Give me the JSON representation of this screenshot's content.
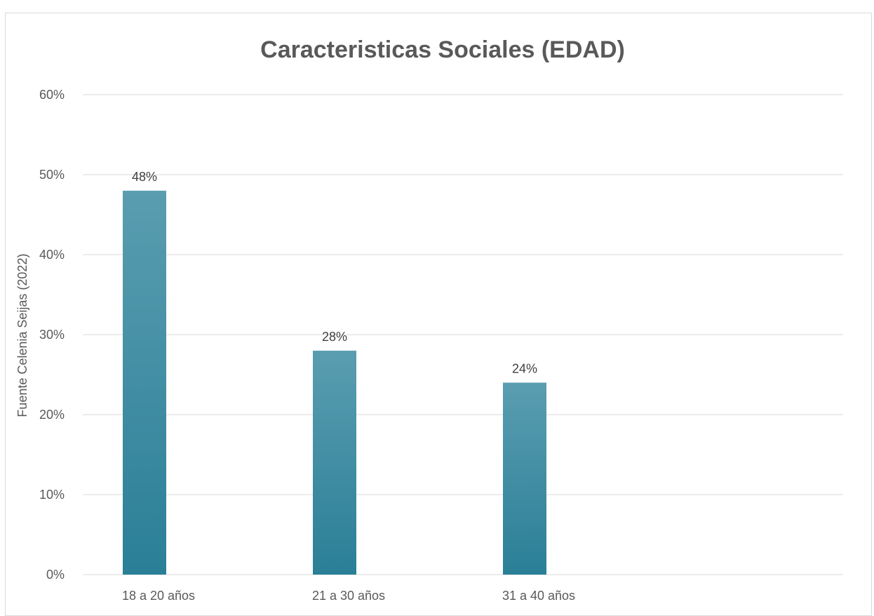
{
  "chart_data": {
    "type": "bar",
    "title": "Caracteristicas Sociales (EDAD)",
    "ylabel": "Fuente Celenia Seijas (2022)",
    "xlabel": "",
    "categories": [
      "18 a 20 años",
      "21 a 30 años",
      "31 a 40 años",
      ""
    ],
    "values": [
      0.48,
      0.28,
      0.24,
      null
    ],
    "data_labels": [
      "48%",
      "28%",
      "24%",
      ""
    ],
    "ylim": [
      0,
      0.6
    ],
    "yticks": [
      0,
      0.1,
      0.2,
      0.3,
      0.4,
      0.5,
      0.6
    ],
    "ytick_labels": [
      "0%",
      "10%",
      "20%",
      "30%",
      "40%",
      "50%",
      "60%"
    ],
    "grid": true,
    "legend": "none",
    "colors": {
      "bar_top": "#5a9db0",
      "bar_bottom": "#2a7f97",
      "grid": "#d9d9d9",
      "text": "#595959"
    }
  }
}
